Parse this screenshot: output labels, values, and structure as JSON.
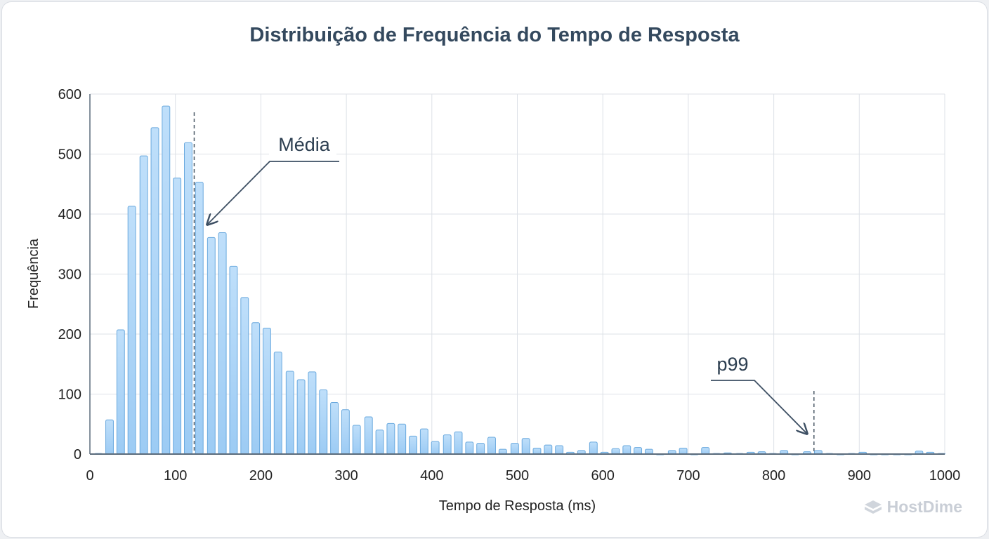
{
  "chart_data": {
    "type": "bar",
    "title": "Distribuição de Frequência do Tempo de Resposta",
    "xlabel": "Tempo de Resposta (ms)",
    "ylabel": "Frequência",
    "xlim": [
      0,
      1000
    ],
    "ylim": [
      0,
      600
    ],
    "xticks": [
      0,
      100,
      200,
      300,
      400,
      500,
      600,
      700,
      800,
      900,
      1000
    ],
    "yticks": [
      0,
      100,
      200,
      300,
      400,
      500,
      600
    ],
    "grid": true,
    "x": [
      10,
      23,
      36,
      49,
      63,
      76,
      89,
      102,
      115,
      128,
      142,
      155,
      168,
      181,
      194,
      207,
      220,
      234,
      247,
      260,
      273,
      286,
      299,
      312,
      326,
      339,
      352,
      365,
      378,
      391,
      404,
      418,
      431,
      444,
      457,
      470,
      483,
      497,
      510,
      523,
      536,
      549,
      562,
      575,
      589,
      602,
      615,
      628,
      641,
      654,
      667,
      681,
      694,
      707,
      720,
      733,
      746,
      760,
      773,
      786,
      799,
      812,
      825,
      839,
      852,
      865,
      878,
      891,
      904,
      917,
      930,
      944,
      957,
      970,
      983,
      996
    ],
    "values": [
      1,
      57,
      207,
      413,
      497,
      544,
      580,
      460,
      519,
      453,
      361,
      369,
      313,
      261,
      219,
      210,
      170,
      138,
      124,
      137,
      107,
      86,
      74,
      48,
      62,
      40,
      51,
      50,
      30,
      42,
      21,
      32,
      37,
      20,
      18,
      28,
      8,
      18,
      26,
      10,
      15,
      14,
      3,
      6,
      20,
      3,
      9,
      14,
      11,
      8,
      0,
      6,
      10,
      0,
      11,
      1,
      2,
      1,
      3,
      4,
      1,
      6,
      0,
      4,
      6,
      1,
      0,
      1,
      3,
      0,
      0,
      0,
      0,
      5,
      3,
      1
    ],
    "bar_color": "#9ccbf4",
    "bar_edge_color": "#6aa9de",
    "annotations": [
      {
        "label": "Média",
        "x": 122
      },
      {
        "label": "p99",
        "x": 847
      }
    ]
  },
  "watermark": "HostDime"
}
